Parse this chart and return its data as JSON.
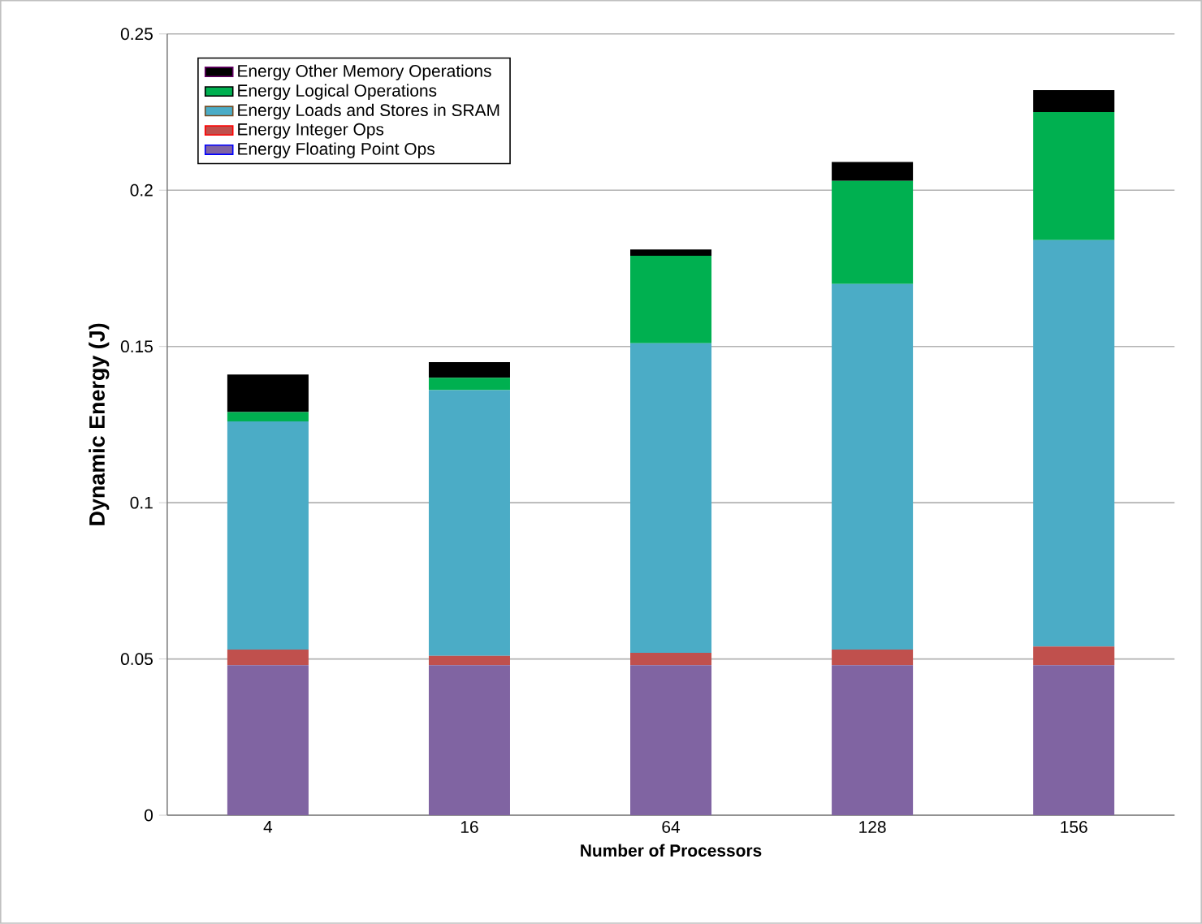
{
  "chart_data": {
    "type": "bar",
    "stacked": true,
    "xlabel": "Number of Processors",
    "ylabel": "Dynamic Energy (J)",
    "categories": [
      "4",
      "16",
      "64",
      "128",
      "156"
    ],
    "series": [
      {
        "name": "Energy Floating Point Ops",
        "color": "#8064a2",
        "values": [
          0.048,
          0.048,
          0.048,
          0.048,
          0.048
        ]
      },
      {
        "name": "Energy Integer Ops",
        "color": "#c0504d",
        "values": [
          0.005,
          0.003,
          0.004,
          0.005,
          0.006
        ]
      },
      {
        "name": "Energy Loads and Stores in SRAM",
        "color": "#4bacc6",
        "values": [
          0.073,
          0.085,
          0.099,
          0.117,
          0.13
        ]
      },
      {
        "name": "Energy Logical Operations",
        "color": "#00b050",
        "values": [
          0.003,
          0.004,
          0.028,
          0.033,
          0.041
        ]
      },
      {
        "name": "Energy Other Memory Operations",
        "color": "#000000",
        "values": [
          0.012,
          0.005,
          0.002,
          0.006,
          0.007
        ]
      }
    ],
    "ylim": [
      0,
      0.25
    ],
    "yticks": [
      0,
      0.05,
      0.1,
      0.15,
      0.2,
      0.25
    ],
    "grid": "y",
    "legend": "top left"
  }
}
